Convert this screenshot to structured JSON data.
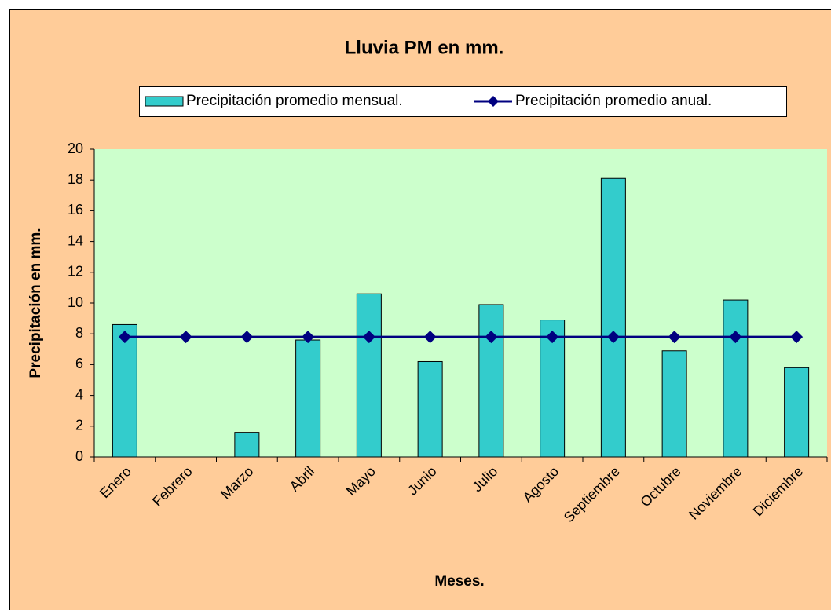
{
  "chart_data": {
    "type": "bar",
    "title": "Lluvia PM en mm.",
    "x_label": "Meses.",
    "y_label": "Precipitación en mm.",
    "categories": [
      "Enero",
      "Febrero",
      "Marzo",
      "Abril",
      "Mayo",
      "Junio",
      "Julio",
      "Agosto",
      "Septiembre",
      "Octubre",
      "Noviembre",
      "Diciembre"
    ],
    "series": [
      {
        "name": "Precipitación promedio mensual.",
        "type": "bar",
        "color": "#33cccc",
        "values": [
          8.6,
          0,
          1.6,
          7.6,
          10.6,
          6.2,
          9.9,
          8.9,
          18.1,
          6.9,
          10.2,
          5.8
        ]
      },
      {
        "name": "Precipitación promedio anual.",
        "type": "line",
        "color": "#000080",
        "values": [
          7.8,
          7.8,
          7.8,
          7.8,
          7.8,
          7.8,
          7.8,
          7.8,
          7.8,
          7.8,
          7.8,
          7.8
        ]
      }
    ],
    "ylim": [
      0,
      20
    ],
    "yticks": [
      0,
      2,
      4,
      6,
      8,
      10,
      12,
      14,
      16,
      18,
      20
    ],
    "grid": false,
    "legend": "top"
  }
}
